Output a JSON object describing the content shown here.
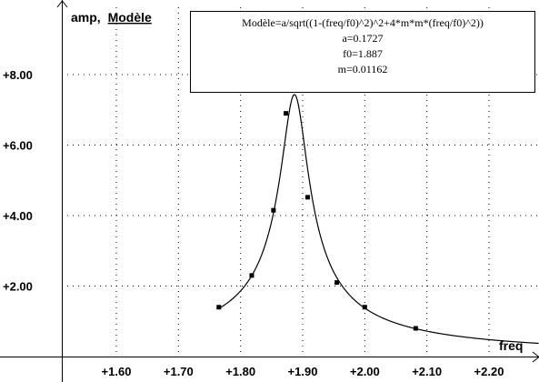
{
  "chart_data": {
    "type": "scatter",
    "ylabel": "amp,",
    "ylabel_model": "Modèle",
    "xlabel": "freq",
    "xlim": [
      1.5,
      2.28
    ],
    "ylim": [
      0,
      9.7
    ],
    "x_ticks": [
      1.6,
      1.7,
      1.8,
      1.9,
      2.0,
      2.1,
      2.2
    ],
    "x_tick_labels": [
      "+1.60",
      "+1.70",
      "+1.80",
      "+1.90",
      "+2.00",
      "+2.10",
      "+2.20"
    ],
    "y_ticks": [
      2,
      4,
      6,
      8
    ],
    "y_tick_labels": [
      "+2.00",
      "+4.00",
      "+6.00",
      "+8.00"
    ],
    "grid": true,
    "series": [
      {
        "type": "scatter",
        "x": [
          1.765,
          1.818,
          1.853,
          1.873,
          1.908,
          1.955,
          2.0,
          2.082
        ],
        "y": [
          1.4,
          2.3,
          4.15,
          6.9,
          4.52,
          2.1,
          1.4,
          0.8
        ]
      }
    ],
    "model": {
      "formula": "Modèle=a/sqrt((1-(freq/f0)^2)^2+4*m*m*(freq/f0)^2))",
      "params": [
        "a=0.1727",
        "f0=1.887",
        "m=0.01162"
      ],
      "a": 0.1727,
      "f0": 1.887,
      "m": 0.01162,
      "x_range": [
        1.765,
        2.28
      ]
    },
    "legend_position": "top-right"
  }
}
